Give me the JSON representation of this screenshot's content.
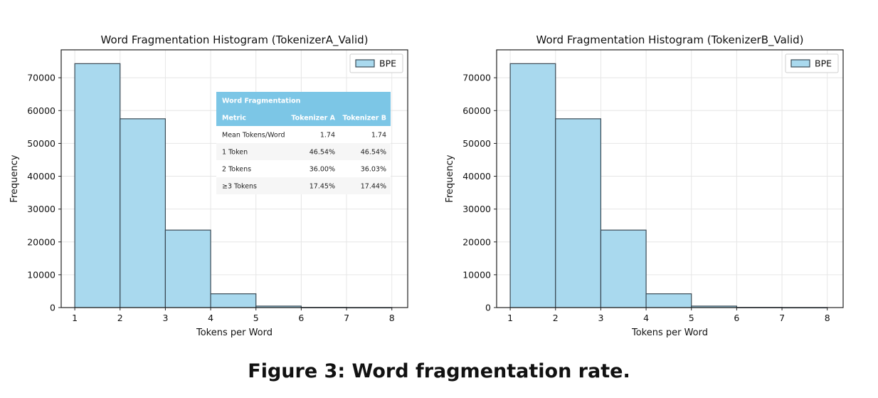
{
  "caption": "Figure 3: Word fragmentation rate.",
  "chart_data": [
    {
      "type": "bar",
      "title": "Word Fragmentation Histogram (TokenizerA_Valid)",
      "xlabel": "Tokens per Word",
      "ylabel": "Frequency",
      "xlim": [
        0.7,
        8.35
      ],
      "ylim": [
        0,
        78500
      ],
      "xticks": [
        1,
        2,
        3,
        4,
        5,
        6,
        7,
        8
      ],
      "yticks": [
        0,
        10000,
        20000,
        30000,
        40000,
        50000,
        60000,
        70000
      ],
      "grid": true,
      "legend": {
        "position": "top-right",
        "entries": [
          "BPE"
        ]
      },
      "bin_edges": [
        1,
        2,
        3,
        4,
        5,
        6,
        7,
        8
      ],
      "series": [
        {
          "name": "BPE",
          "color": "#a9d9ee",
          "values": [
            74300,
            57500,
            23600,
            4200,
            450,
            60,
            10
          ]
        }
      ],
      "table": {
        "title": "Word Fragmentation",
        "columns": [
          "Metric",
          "Tokenizer A",
          "Tokenizer B"
        ],
        "rows": [
          [
            "Mean Tokens/Word",
            "1.74",
            "1.74"
          ],
          [
            "1 Token",
            "46.54%",
            "46.54%"
          ],
          [
            "2 Tokens",
            "36.00%",
            "36.03%"
          ],
          [
            "≥3 Tokens",
            "17.45%",
            "17.44%"
          ]
        ]
      }
    },
    {
      "type": "bar",
      "title": "Word Fragmentation Histogram (TokenizerB_Valid)",
      "xlabel": "Tokens per Word",
      "ylabel": "Frequency",
      "xlim": [
        0.7,
        8.35
      ],
      "ylim": [
        0,
        78500
      ],
      "xticks": [
        1,
        2,
        3,
        4,
        5,
        6,
        7,
        8
      ],
      "yticks": [
        0,
        10000,
        20000,
        30000,
        40000,
        50000,
        60000,
        70000
      ],
      "grid": true,
      "legend": {
        "position": "top-right",
        "entries": [
          "BPE"
        ]
      },
      "bin_edges": [
        1,
        2,
        3,
        4,
        5,
        6,
        7,
        8
      ],
      "series": [
        {
          "name": "BPE",
          "color": "#a9d9ee",
          "values": [
            74300,
            57500,
            23600,
            4200,
            450,
            60,
            10
          ]
        }
      ]
    }
  ]
}
